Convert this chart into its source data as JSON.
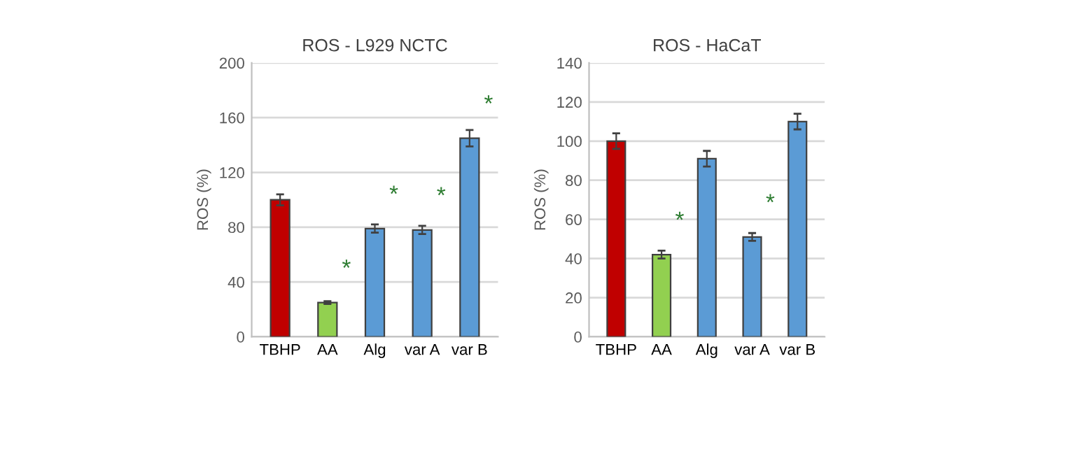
{
  "chart_data": [
    {
      "type": "bar",
      "title": "ROS - L929 NCTC",
      "ylabel": "ROS (%)",
      "categories": [
        "TBHP",
        "AA",
        "Alg",
        "var A",
        "var B"
      ],
      "values": [
        100,
        25,
        79,
        78,
        145
      ],
      "errors": [
        4,
        1,
        3,
        3,
        6
      ],
      "colors": [
        "#c00000",
        "#92d050",
        "#5b9bd5",
        "#5b9bd5",
        "#5b9bd5"
      ],
      "ylim": [
        0,
        200
      ],
      "yticks": [
        0,
        40,
        80,
        120,
        160,
        200
      ],
      "grid": "y",
      "legend": false,
      "value_labels": [
        null,
        "*",
        "*",
        "*",
        "*"
      ]
    },
    {
      "type": "bar",
      "title": "ROS - HaCaT",
      "ylabel": "ROS (%)",
      "categories": [
        "TBHP",
        "AA",
        "Alg",
        "var A",
        "var B"
      ],
      "values": [
        100,
        42,
        91,
        51,
        110
      ],
      "errors": [
        4,
        2,
        4,
        2,
        4
      ],
      "colors": [
        "#c00000",
        "#92d050",
        "#5b9bd5",
        "#5b9bd5",
        "#5b9bd5"
      ],
      "ylim": [
        0,
        140
      ],
      "yticks": [
        0,
        20,
        40,
        60,
        80,
        100,
        120,
        140
      ],
      "grid": "y",
      "legend": false,
      "value_labels": [
        null,
        "*",
        null,
        "*",
        null
      ]
    }
  ]
}
